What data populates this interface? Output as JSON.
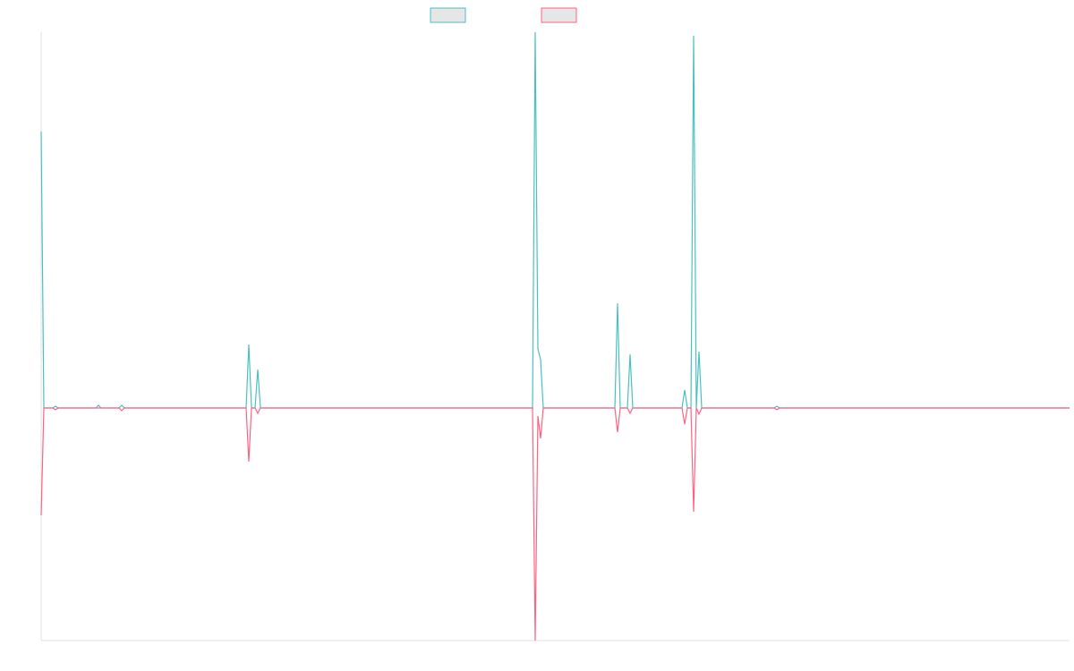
{
  "chart_data": {
    "type": "line",
    "x": [
      0,
      3,
      13,
      16,
      19,
      61,
      64,
      67,
      87,
      90,
      93,
      229,
      232,
      235,
      239,
      242,
      245,
      549,
      552,
      555,
      558,
      561,
      641,
      644,
      647,
      655,
      658,
      661,
      716,
      719,
      722,
      726,
      729,
      732,
      735,
      738,
      819,
      822,
      825,
      1149
    ],
    "xlim": [
      0,
      1149
    ],
    "ylim": [
      -260,
      420
    ],
    "series": [
      {
        "color": "#4bc0c0",
        "values": [
          309,
          0,
          0,
          2,
          0,
          0,
          3,
          0,
          0,
          3,
          0,
          0,
          71,
          0,
          0,
          43,
          0,
          0,
          420,
          66,
          54,
          0,
          0,
          117,
          0,
          0,
          60,
          0,
          0,
          20,
          0,
          0,
          416,
          0,
          63,
          0,
          0,
          2,
          0,
          0
        ]
      },
      {
        "color": "#ff6384",
        "values": [
          -120,
          0,
          0,
          -2,
          0,
          0,
          0,
          0,
          0,
          -3,
          0,
          0,
          -60,
          0,
          0,
          -6,
          0,
          0,
          -260,
          -9,
          -34,
          0,
          0,
          -27,
          0,
          0,
          -6,
          0,
          0,
          -18,
          0,
          0,
          -116,
          0,
          -7,
          0,
          0,
          -2,
          0,
          0
        ]
      }
    ]
  }
}
